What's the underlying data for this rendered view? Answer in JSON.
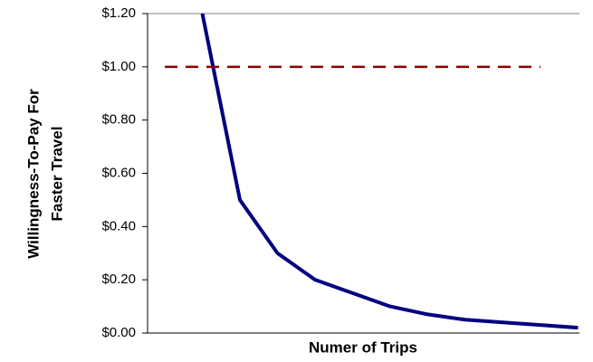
{
  "chart_data": {
    "type": "line",
    "x_label": "Numer of Trips",
    "y_label": [
      "Willingness-To-Pay For",
      "Faster Travel"
    ],
    "categories": [
      null,
      null,
      null,
      null,
      null,
      null,
      null,
      null,
      null,
      null,
      null,
      null
    ],
    "series": [
      {
        "color": "#000080",
        "style": "solid",
        "values": [
          null,
          1.2,
          0.5,
          0.3,
          0.2,
          0.15,
          0.1,
          0.07,
          0.05,
          0.04,
          0.03,
          0.02
        ]
      },
      {
        "color": "#8b0000",
        "style": "dashed",
        "values": [
          1.0,
          1.0,
          1.0,
          1.0,
          1.0,
          1.0,
          1.0,
          1.0,
          1.0,
          1.0,
          1.0,
          null
        ]
      }
    ],
    "ylim": [
      0,
      1.2
    ],
    "yticks": [
      {
        "value": 0,
        "label": "$0.00"
      },
      {
        "value": 0.2,
        "label": "$0.20"
      },
      {
        "value": 0.4,
        "label": "$0.40"
      },
      {
        "value": 0.6,
        "label": "$0.60"
      },
      {
        "value": 0.8,
        "label": "$0.80"
      },
      {
        "value": 1.0,
        "label": "$1.00"
      },
      {
        "value": 1.2,
        "label": "$1.20"
      }
    ],
    "grid": false
  }
}
